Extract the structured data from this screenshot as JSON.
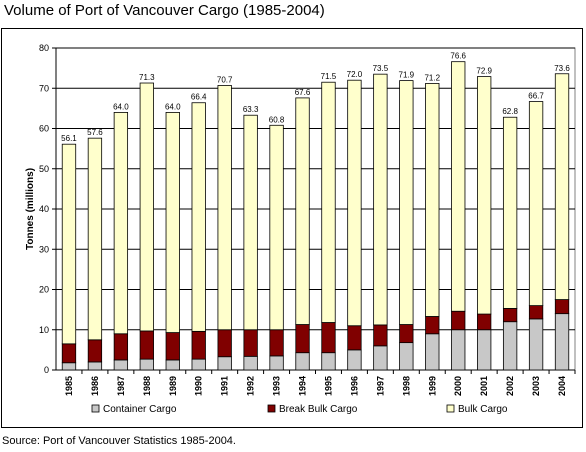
{
  "title": "Volume of Port of Vancouver Cargo (1985-2004)",
  "source": "Source: Port of Vancouver Statistics 1985-2004.",
  "colors": {
    "container": "#c8c8c8",
    "breakbulk": "#800000",
    "bulk": "#ffffcc",
    "grid": "#000000",
    "plot_bg": "#ffffff"
  },
  "chart_data": {
    "type": "bar",
    "stacked": true,
    "categories": [
      "1985",
      "1986",
      "1987",
      "1988",
      "1989",
      "1990",
      "1991",
      "1992",
      "1993",
      "1994",
      "1995",
      "1996",
      "1997",
      "1998",
      "1999",
      "2000",
      "2001",
      "2002",
      "2003",
      "2004"
    ],
    "ylabel": "Tonnes (millions)",
    "xlabel": "",
    "ylim": [
      0,
      80
    ],
    "yticks": [
      0,
      10,
      20,
      30,
      40,
      50,
      60,
      70,
      80
    ],
    "grid": true,
    "legend_position": "bottom",
    "series": [
      {
        "name": "Container Cargo",
        "color_key": "container",
        "values": [
          1.8,
          2.0,
          2.5,
          2.7,
          2.5,
          2.7,
          3.3,
          3.4,
          3.5,
          4.3,
          4.3,
          5.0,
          6.0,
          6.8,
          9.0,
          10.0,
          10.0,
          12.0,
          12.7,
          14.0
        ]
      },
      {
        "name": "Break Bulk Cargo",
        "color_key": "breakbulk",
        "values": [
          4.7,
          5.5,
          6.5,
          7.0,
          6.8,
          6.9,
          6.7,
          6.6,
          6.5,
          7.0,
          7.5,
          6.0,
          5.2,
          4.5,
          4.3,
          4.6,
          3.9,
          3.3,
          3.3,
          3.5
        ]
      },
      {
        "name": "Bulk Cargo",
        "color_key": "bulk",
        "values": [
          49.6,
          50.1,
          55.0,
          61.6,
          54.7,
          56.8,
          60.7,
          53.3,
          50.8,
          56.3,
          59.7,
          61.0,
          62.3,
          60.6,
          57.9,
          62.0,
          59.0,
          47.5,
          50.7,
          56.1
        ]
      }
    ],
    "totals": [
      56.1,
      57.6,
      64.0,
      71.3,
      64.0,
      66.4,
      70.7,
      63.3,
      60.8,
      67.6,
      71.5,
      72.0,
      73.5,
      71.9,
      71.2,
      76.6,
      72.9,
      62.8,
      66.7,
      73.6
    ],
    "total_labels": [
      "56.1",
      "57.6",
      "64.0",
      "71.3",
      "64.0",
      "66.4",
      "70.7",
      "63.3",
      "60.8",
      "67.6",
      "71.5",
      "72.0",
      "73.5",
      "71.9",
      "71.2",
      "76.6",
      "72.9",
      "62.8",
      "66.7",
      "73.6"
    ]
  }
}
